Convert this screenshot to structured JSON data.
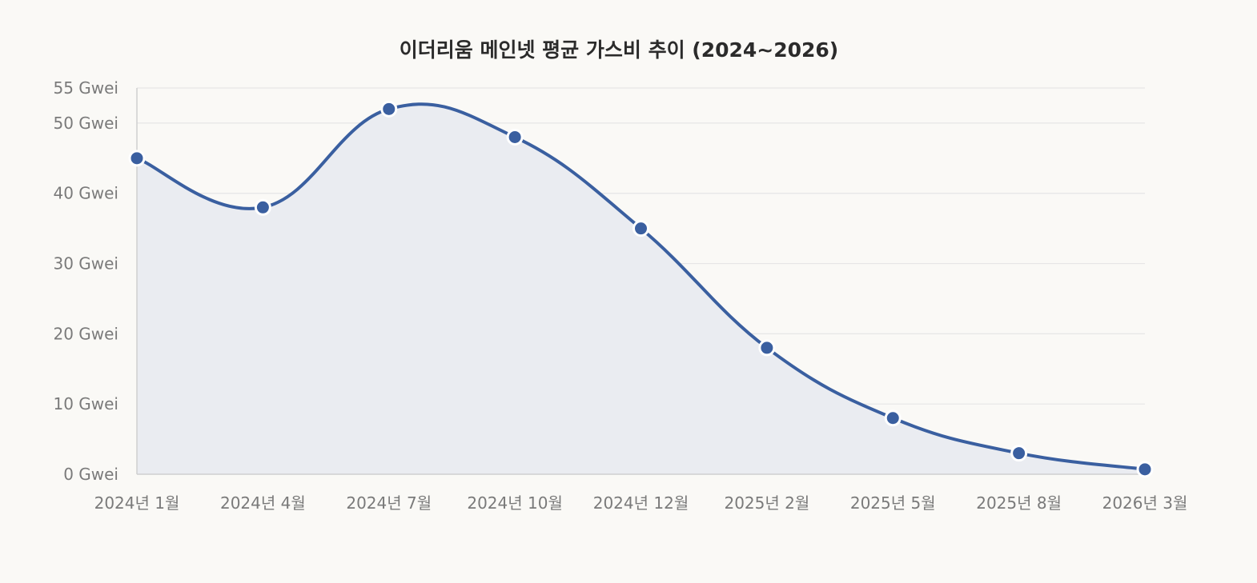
{
  "chart_data": {
    "type": "area",
    "title": "이더리움 메인넷 평균 가스비 추이 (2024~2026)",
    "xlabel": "",
    "ylabel": "",
    "categories": [
      "2024년 1월",
      "2024년 4월",
      "2024년 7월",
      "2024년 10월",
      "2024년 12월",
      "2025년 2월",
      "2025년 5월",
      "2025년 8월",
      "2026년 3월"
    ],
    "series": [
      {
        "values": [
          45,
          38,
          52,
          48,
          35,
          18,
          8,
          3,
          0.7
        ]
      }
    ],
    "ylim": [
      0,
      55
    ],
    "yticks": [
      0,
      10,
      20,
      30,
      40,
      50,
      55
    ],
    "ytick_labels": [
      "0 Gwei",
      "10 Gwei",
      "20 Gwei",
      "30 Gwei",
      "40 Gwei",
      "50 Gwei",
      "55 Gwei"
    ],
    "grid": true,
    "legend": "none",
    "colors": {
      "line": "#3a5fa0",
      "fill": "#eaecf1",
      "marker_stroke": "#ffffff"
    }
  }
}
